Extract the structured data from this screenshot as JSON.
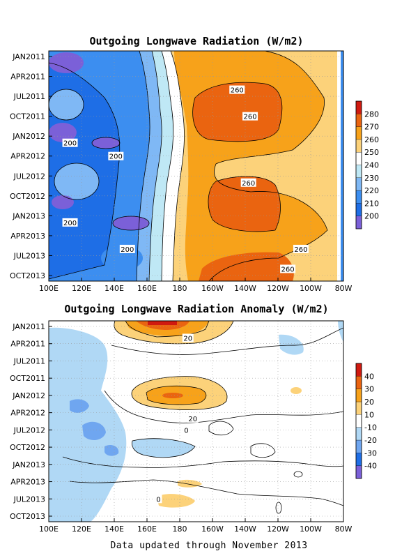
{
  "footer": "Data updated through November 2013",
  "chart_data": [
    {
      "type": "heatmap",
      "title": "Outgoing Longwave Radiation (W/m2)",
      "x_tick_labels": [
        "100E",
        "120E",
        "140E",
        "160E",
        "180",
        "160W",
        "140W",
        "120W",
        "100W",
        "80W"
      ],
      "y_tick_labels": [
        "JAN2011",
        "APR2011",
        "JUL2011",
        "OCT2011",
        "JAN2012",
        "APR2012",
        "JUL2012",
        "OCT2012",
        "JAN2013",
        "APR2013",
        "JUL2013",
        "OCT2013"
      ],
      "colorbar": {
        "levels": [
          "200",
          "210",
          "220",
          "230",
          "240",
          "250",
          "260",
          "270",
          "280"
        ],
        "colors": [
          "#7b60d8",
          "#1e6ee6",
          "#3c8ef0",
          "#7fb8f5",
          "#bfe8f5",
          "#ffffff",
          "#fcd27a",
          "#f7a21a",
          "#ea6410",
          "#d01a10"
        ]
      },
      "contour_labels": [
        {
          "text": "260",
          "lon": -145,
          "month": 5
        },
        {
          "text": "260",
          "lon": -137,
          "month": 9
        },
        {
          "text": "200",
          "lon": 113,
          "month": 13
        },
        {
          "text": "200",
          "lon": 141,
          "month": 15
        },
        {
          "text": "260",
          "lon": -138,
          "month": 19
        },
        {
          "text": "200",
          "lon": 113,
          "month": 25
        },
        {
          "text": "200",
          "lon": 148,
          "month": 29
        },
        {
          "text": "260",
          "lon": -106,
          "month": 29
        },
        {
          "text": "260",
          "lon": -114,
          "month": 32
        }
      ]
    },
    {
      "type": "heatmap",
      "title": "Outgoing Longwave Radiation Anomaly (W/m2)",
      "x_tick_labels": [
        "100E",
        "120E",
        "140E",
        "160E",
        "180",
        "160W",
        "140W",
        "120W",
        "100W",
        "80W"
      ],
      "y_tick_labels": [
        "JAN2011",
        "APR2011",
        "JUL2011",
        "OCT2011",
        "JAN2012",
        "APR2012",
        "JUL2012",
        "OCT2012",
        "JAN2013",
        "APR2013",
        "JUL2013",
        "OCT2013"
      ],
      "colorbar": {
        "levels": [
          "-40",
          "-30",
          "-20",
          "-10",
          "10",
          "20",
          "30",
          "40"
        ],
        "colors": [
          "#7b60d8",
          "#1e6ee6",
          "#6fa6f0",
          "#b0d8f5",
          "#ffffff",
          "#fcd27a",
          "#f7a21a",
          "#ea6410",
          "#d01a10"
        ]
      },
      "contour_labels": [
        {
          "text": "20",
          "lon": -175,
          "month": 2
        },
        {
          "text": "20",
          "lon": -172,
          "month": 16
        },
        {
          "text": "0",
          "lon": -176,
          "month": 18
        },
        {
          "text": "0",
          "lon": 167,
          "month": 30
        }
      ]
    }
  ]
}
